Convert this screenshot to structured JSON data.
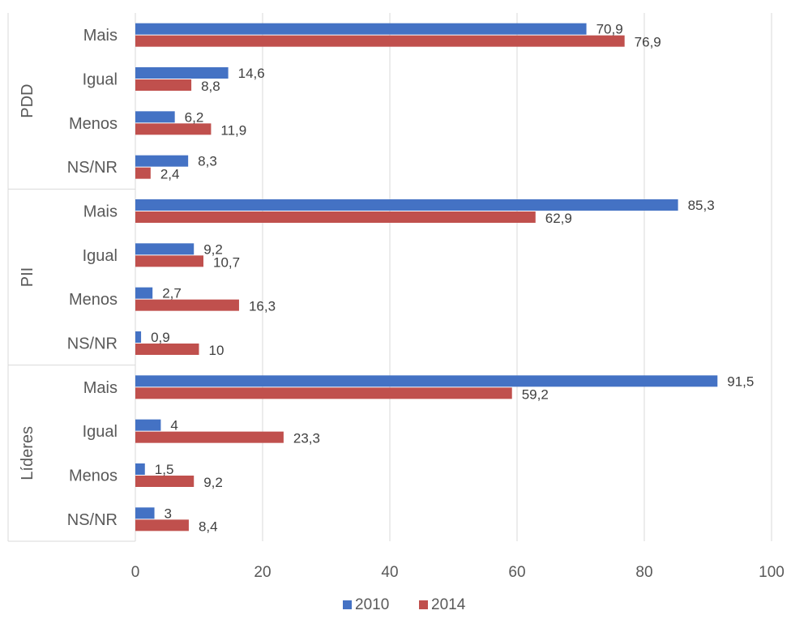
{
  "chart_data": {
    "type": "bar",
    "orientation": "horizontal",
    "groups": [
      {
        "name": "PDD",
        "categories": [
          "Mais",
          "Igual",
          "Menos",
          "NS/NR"
        ],
        "values_2010": [
          70.9,
          14.6,
          6.2,
          8.3
        ],
        "values_2014": [
          76.9,
          8.8,
          11.9,
          2.4
        ],
        "labels_2010": [
          "70,9",
          "14,6",
          "6,2",
          "8,3"
        ],
        "labels_2014": [
          "76,9",
          "8,8",
          "11,9",
          "2,4"
        ]
      },
      {
        "name": "PII",
        "categories": [
          "Mais",
          "Igual",
          "Menos",
          "NS/NR"
        ],
        "values_2010": [
          85.3,
          9.2,
          2.7,
          0.9
        ],
        "values_2014": [
          62.9,
          10.7,
          16.3,
          10
        ],
        "labels_2010": [
          "85,3",
          "9,2",
          "2,7",
          "0,9"
        ],
        "labels_2014": [
          "62,9",
          "10,7",
          "16,3",
          "10"
        ]
      },
      {
        "name": "Líderes",
        "categories": [
          "Mais",
          "Igual",
          "Menos",
          "NS/NR"
        ],
        "values_2010": [
          91.5,
          4,
          1.5,
          3
        ],
        "values_2014": [
          59.2,
          23.3,
          9.2,
          8.4
        ],
        "labels_2010": [
          "91,5",
          "4",
          "1,5",
          "3"
        ],
        "labels_2014": [
          "59,2",
          "23,3",
          "9,2",
          "8,4"
        ]
      }
    ],
    "series": [
      {
        "name": "2010",
        "color": "#4472c4"
      },
      {
        "name": "2014",
        "color": "#c0504d"
      }
    ],
    "xlim": [
      0,
      100
    ],
    "xticks": [
      0,
      20,
      40,
      60,
      80,
      100
    ],
    "grid": true,
    "legend": "bottom",
    "title": "",
    "xlabel": "",
    "ylabel": ""
  }
}
